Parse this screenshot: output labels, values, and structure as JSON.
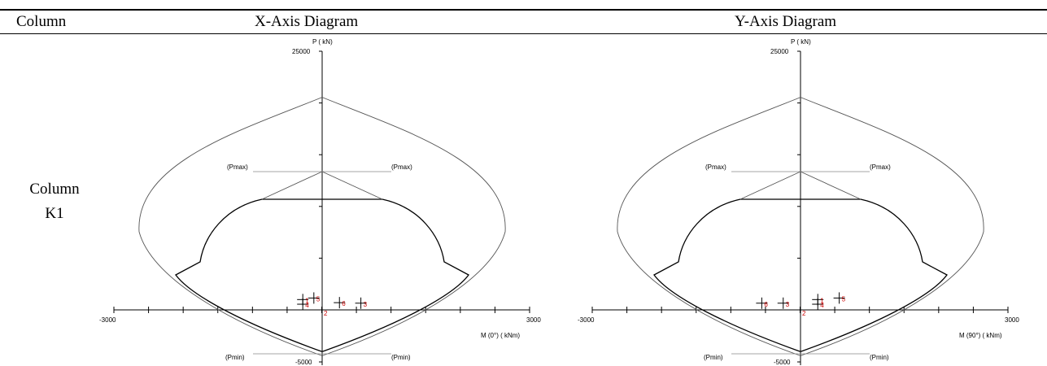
{
  "table": {
    "headers": {
      "column": "Column",
      "x_axis": "X-Axis Diagram",
      "y_axis": "Y-Axis Diagram"
    },
    "row": {
      "label_line1": "Column",
      "label_line2": "K1"
    }
  },
  "diagrams": [
    {
      "id": "x",
      "axis_p_label": "P ( kN)",
      "axis_m_label": "M (0°) ( kNm)",
      "p_top_tick": "25000",
      "p_bottom_tick": "-5000",
      "m_left_tick": "-3000",
      "m_right_tick": "3000",
      "pmax_label": "(Pmax)",
      "pmin_label": "(Pmin)",
      "zero_label": "2",
      "points": [
        {
          "label": "1",
          "m": -280,
          "p": 1000
        },
        {
          "label": "4",
          "m": -280,
          "p": 550
        },
        {
          "label": "5",
          "m": -120,
          "p": 1150
        },
        {
          "label": "6",
          "m": 250,
          "p": 700
        },
        {
          "label": "3",
          "m": 560,
          "p": 650
        }
      ]
    },
    {
      "id": "y",
      "axis_p_label": "P ( kN)",
      "axis_m_label": "M (90°) ( kNm)",
      "p_top_tick": "25000",
      "p_bottom_tick": "-5000",
      "m_left_tick": "-3000",
      "m_right_tick": "3000",
      "pmax_label": "(Pmax)",
      "pmin_label": "(Pmin)",
      "zero_label": "2",
      "points": [
        {
          "label": "6",
          "m": -560,
          "p": 650
        },
        {
          "label": "3",
          "m": -250,
          "p": 650
        },
        {
          "label": "1",
          "m": 250,
          "p": 1000
        },
        {
          "label": "4",
          "m": 250,
          "p": 550
        },
        {
          "label": "5",
          "m": 560,
          "p": 1150
        }
      ]
    }
  ],
  "colors": {
    "ink": "#000000",
    "outer_curve": "#555555",
    "point_label": "#cc0000",
    "guide": "#888888"
  }
}
